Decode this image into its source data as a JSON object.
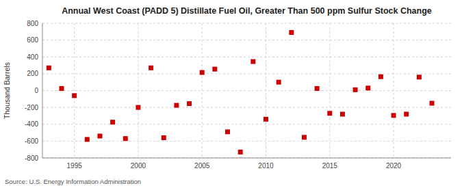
{
  "chart_data": {
    "type": "scatter",
    "title": "Annual West Coast (PADD 5) Distillate Fuel Oil, Greater Than 500 ppm Sulfur Stock Change",
    "y_label": "Thousand Barrels",
    "annotations": [
      "Source: U.S. Energy Information Administration"
    ],
    "x": [
      1993,
      1994,
      1995,
      1996,
      1997,
      1998,
      1999,
      2000,
      2001,
      2002,
      2003,
      2004,
      2005,
      2006,
      2007,
      2008,
      2009,
      2010,
      2011,
      2012,
      2013,
      2014,
      2015,
      2016,
      2017,
      2018,
      2019,
      2020,
      2021,
      2022,
      2023
    ],
    "values": [
      270,
      25,
      -60,
      -580,
      -540,
      -375,
      -570,
      -200,
      270,
      -560,
      -175,
      -155,
      215,
      255,
      -490,
      -730,
      345,
      -340,
      100,
      690,
      -555,
      25,
      -270,
      -280,
      10,
      30,
      165,
      -295,
      -280,
      160,
      -150
    ],
    "color": "#cc0000",
    "marker": "square",
    "xlim": [
      1992.5,
      2024.5
    ],
    "xticks": [
      1995,
      2000,
      2005,
      2010,
      2015,
      2020
    ],
    "ylim": [
      -800,
      800
    ],
    "yticks": [
      -800,
      -600,
      -400,
      -200,
      0,
      200,
      400,
      600,
      800
    ],
    "grid": true
  }
}
